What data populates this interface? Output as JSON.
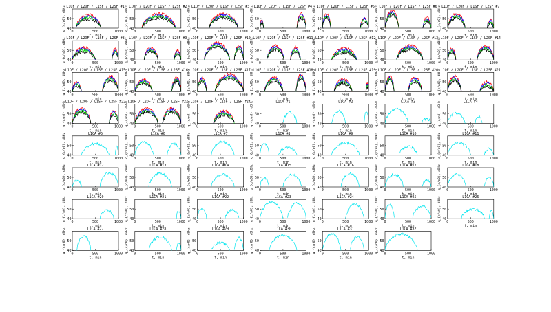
{
  "figure": {
    "colors": {
      "L1OF": "#ff0000",
      "L2OF": "#0000ff",
      "L1SF": "#00cc00",
      "L2SF": "#000000",
      "L1CA": "#00e5ee"
    }
  },
  "chart_data": {
    "type": "line",
    "panel_count": 56,
    "xlabel": "t, min",
    "ylabel": "q_{c/n0}, dBHz",
    "xlim": [
      0,
      1000
    ],
    "ylim": [
      40,
      60
    ],
    "xticks": [
      0,
      500,
      1000
    ],
    "yticks": [
      40,
      50
    ],
    "glonass_title_prefix": "L1OF / L2OF / L1SF / L2SF #",
    "gps_title_prefix": "L1CA #",
    "glonass_series": [
      "L1OF",
      "L2OF",
      "L1SF",
      "L2SF"
    ],
    "gps_series": [
      "L1CA"
    ],
    "panels": [
      {
        "title": "L1OF / L2OF / L1SF / L2SF #1",
        "arcs": [
          [
            80,
            620,
            51
          ]
        ]
      },
      {
        "title": "L1OF / L2OF / L1SF / L2SF #2",
        "arcs": [
          [
            150,
            880,
            52
          ]
        ]
      },
      {
        "title": "L1OF / L2OF / L1SF / L2SF #3",
        "arcs": [
          [
            250,
            880,
            52
          ]
        ]
      },
      {
        "title": "L1OF / L2OF / L1SF / L2SF #4",
        "arcs": [
          [
            0,
            80,
            46
          ],
          [
            800,
            1000,
            52
          ]
        ]
      },
      {
        "title": "L1OF / L2OF / L1SF / L2SF #5",
        "arcs": [
          [
            0,
            180,
            52
          ],
          [
            820,
            1000,
            48
          ]
        ]
      },
      {
        "title": "L1OF / L2OF / L1SF / L2SF #6",
        "arcs": [
          [
            0,
            300,
            55
          ],
          [
            820,
            1000,
            48
          ]
        ]
      },
      {
        "title": "L1OF / L2OF / L1SF / L2SF #7",
        "arcs": [
          [
            0,
            380,
            52
          ],
          [
            860,
            1000,
            46
          ]
        ]
      },
      {
        "title": "L1OF / L2OF / L1SF / L2SF #8",
        "arcs": [
          [
            0,
            500,
            50
          ],
          [
            860,
            1000,
            48
          ]
        ]
      },
      {
        "title": "L1OF / L2OF / L1SF / L2SF #9",
        "arcs": [
          [
            200,
            500,
            50
          ],
          [
            850,
            1000,
            47
          ]
        ]
      },
      {
        "title": "L1OF / L2OF / L1SF / L2SF #10",
        "arcs": [
          [
            150,
            700,
            55
          ],
          [
            800,
            1000,
            52
          ]
        ]
      },
      {
        "title": "L1OF / L2OF / L1SF / L2SF #11",
        "arcs": [
          [
            150,
            520,
            52
          ],
          [
            660,
            880,
            50
          ]
        ]
      },
      {
        "title": "L1OF / L2OF / L1SF / L2SF #12",
        "arcs": [
          [
            200,
            740,
            49
          ]
        ]
      },
      {
        "title": "L1OF / L2OF / L1SF / L2SF #13",
        "arcs": [
          [
            250,
            820,
            52
          ]
        ]
      },
      {
        "title": "L1OF / L2OF / L1SF / L2SF #14",
        "arcs": [
          [
            0,
            180,
            49
          ],
          [
            640,
            1000,
            52
          ]
        ]
      },
      {
        "title": "L1OF / L2OF / L1SF / L2SF #15",
        "arcs": [
          [
            0,
            200,
            47
          ],
          [
            650,
            1000,
            53
          ]
        ]
      },
      {
        "title": "L1OF / L2OF / L1SF / L2SF #16",
        "arcs": [
          [
            0,
            380,
            50
          ],
          [
            800,
            1000,
            52
          ]
        ]
      },
      {
        "title": "L1OF / L2OF / L1SF / L2SF #17",
        "arcs": [
          [
            0,
            200,
            52
          ],
          [
            380,
            1000,
            55
          ]
        ]
      },
      {
        "title": "L1OF / L2OF / L1SF / L2SF #18",
        "arcs": [
          [
            100,
            500,
            52
          ],
          [
            780,
            1000,
            55
          ]
        ]
      },
      {
        "title": "L1OF / L2OF / L1SF / L2SF #19",
        "arcs": [
          [
            250,
            640,
            50
          ],
          [
            940,
            1000,
            46
          ]
        ]
      },
      {
        "title": "L1OF / L2OF / L1SF / L2SF #20",
        "arcs": [
          [
            0,
            200,
            53
          ],
          [
            500,
            800,
            52
          ]
        ]
      },
      {
        "title": "L1OF / L2OF / L1SF / L2SF #21",
        "arcs": [
          [
            0,
            300,
            53
          ],
          [
            700,
            1000,
            47
          ]
        ]
      },
      {
        "title": "L1OF / L2OF / L1SF / L2SF #22",
        "arcs": [
          [
            0,
            400,
            53
          ],
          [
            800,
            1000,
            50
          ]
        ]
      },
      {
        "title": "L1OF / L2OF / L1SF / L2SF #23",
        "arcs": [
          [
            0,
            500,
            53
          ],
          [
            600,
            1000,
            53
          ]
        ]
      },
      {
        "title": "L1OF / L2OF / L1SF / L2SF #24",
        "arcs": [
          [
            350,
            800,
            50
          ]
        ]
      },
      {
        "title": "L1CA #1",
        "arcs": [
          [
            500,
            800,
            52
          ]
        ]
      },
      {
        "title": "L1CA #2",
        "arcs": [
          [
            200,
            500,
            53
          ],
          [
            900,
            1000,
            52
          ]
        ]
      },
      {
        "title": "L1CA #3",
        "arcs": [
          [
            0,
            500,
            55
          ],
          [
            800,
            1000,
            45
          ]
        ]
      },
      {
        "title": "L1CA #4",
        "arcs": [
          [
            0,
            380,
            51
          ],
          [
            600,
            750,
            47
          ]
        ]
      },
      {
        "title": "L1CA #5",
        "arcs": [
          [
            200,
            800,
            52
          ],
          [
            930,
            1000,
            49
          ]
        ]
      },
      {
        "title": "L1CA #6",
        "arcs": [
          [
            0,
            400,
            54
          ],
          [
            700,
            1000,
            52
          ]
        ]
      },
      {
        "title": "L1CA #7",
        "arcs": [
          [
            300,
            800,
            54
          ]
        ]
      },
      {
        "title": "L1CA #8",
        "arcs": [
          [
            0,
            200,
            52
          ],
          [
            400,
            800,
            48
          ]
        ]
      },
      {
        "title": "L1CA #9",
        "arcs": [
          [
            200,
            800,
            53
          ]
        ]
      },
      {
        "title": "L1CA #10",
        "arcs": [
          [
            300,
            700,
            49
          ]
        ]
      },
      {
        "title": "L1CA #11",
        "arcs": [
          [
            0,
            500,
            53
          ],
          [
            800,
            1000,
            47
          ]
        ]
      },
      {
        "title": "L1CA #12",
        "arcs": [
          [
            0,
            200,
            47
          ],
          [
            600,
            1000,
            55
          ]
        ]
      },
      {
        "title": "L1CA #13",
        "arcs": [
          [
            300,
            800,
            54
          ]
        ]
      },
      {
        "title": "L1CA #14",
        "arcs": [
          [
            300,
            800,
            53
          ]
        ]
      },
      {
        "title": "L1CA #15",
        "arcs": [
          [
            0,
            200,
            49
          ],
          [
            500,
            900,
            53
          ]
        ]
      },
      {
        "title": "L1CA #16",
        "arcs": [
          [
            400,
            800,
            54
          ]
        ]
      },
      {
        "title": "L1CA #17",
        "arcs": [
          [
            0,
            400,
            53
          ],
          [
            800,
            1000,
            47
          ]
        ]
      },
      {
        "title": "L1CA #18",
        "arcs": [
          [
            0,
            400,
            53
          ],
          [
            800,
            1000,
            50
          ]
        ]
      },
      {
        "title": "L1CA #20",
        "arcs": [
          [
            600,
            900,
            49
          ]
        ]
      },
      {
        "title": "L1CA #21",
        "arcs": [
          [
            900,
            1000,
            48
          ]
        ]
      },
      {
        "title": "L1CA #22",
        "arcs": [
          [
            0,
            200,
            51
          ],
          [
            600,
            900,
            49
          ]
        ]
      },
      {
        "title": "L1CA #23",
        "arcs": [
          [
            0,
            500,
            57
          ],
          [
            600,
            1000,
            56
          ]
        ]
      },
      {
        "title": "L1CA #24",
        "arcs": [
          [
            500,
            900,
            55
          ]
        ]
      },
      {
        "title": "L1CA #25",
        "arcs": [
          [
            0,
            200,
            55
          ],
          [
            600,
            1000,
            53
          ]
        ]
      },
      {
        "title": "L1CA #26",
        "arcs": [
          [
            300,
            800,
            50
          ],
          [
            900,
            1000,
            49
          ]
        ]
      },
      {
        "title": "L1CA #27",
        "arcs": [
          [
            100,
            400,
            55
          ]
        ]
      },
      {
        "title": "L1CA #28",
        "arcs": [
          [
            300,
            800,
            54
          ],
          [
            900,
            1000,
            48
          ]
        ]
      },
      {
        "title": "L1CA #29",
        "arcs": [
          [
            300,
            700,
            48
          ],
          [
            800,
            1000,
            53
          ]
        ]
      },
      {
        "title": "L1CA #30",
        "arcs": [
          [
            200,
            800,
            56
          ]
        ]
      },
      {
        "title": "L1CA #31",
        "arcs": [
          [
            0,
            400,
            57
          ],
          [
            600,
            900,
            54
          ]
        ]
      },
      {
        "title": "L1CA #32",
        "arcs": [
          [
            0,
            700,
            57
          ]
        ]
      },
      {
        "title": "",
        "arcs": []
      }
    ]
  }
}
